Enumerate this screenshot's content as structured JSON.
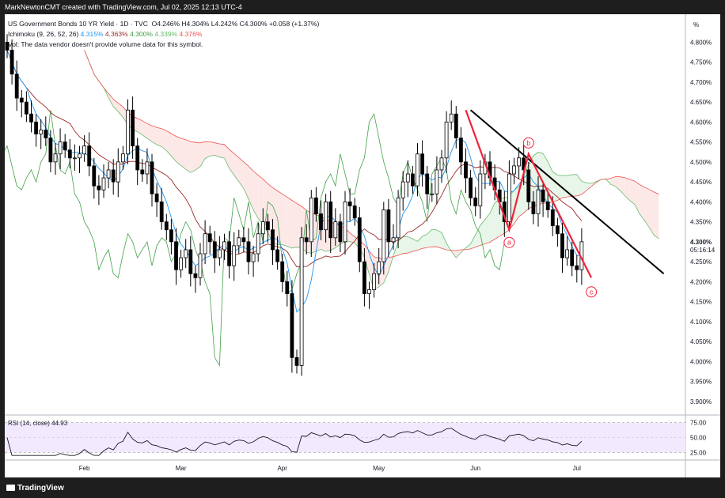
{
  "header": {
    "attribution": "MarkNewtonCMT created with TradingView.com, Jul 02, 2025 12:13 UTC-4"
  },
  "legend": {
    "symbol_line": "US Government Bonds 10 YR Yield · 1D · TVC",
    "ohlc": "O4.246% H4.304% L4.242% C4.300% +0.058 (+1.37%)",
    "ichimoku_label": "Ichimoku (9, 26, 52, 26)",
    "ichimoku_values": [
      "4.315%",
      "4.363%",
      "4.300%",
      "4.339%",
      "4.376%"
    ],
    "ichimoku_colors": [
      "#2196f3",
      "#9c2a2a",
      "#43a047",
      "#66bb6a",
      "#ef5350"
    ],
    "vol_line": "Vol: The data vendor doesn't provide volume data for this symbol."
  },
  "price_axis": {
    "unit": "%",
    "ticks": [
      "4.800%",
      "4.750%",
      "4.700%",
      "4.650%",
      "4.600%",
      "4.550%",
      "4.500%",
      "4.450%",
      "4.400%",
      "4.350%",
      "4.250%",
      "4.200%",
      "4.150%",
      "4.100%",
      "4.050%",
      "4.000%",
      "3.950%",
      "3.900%"
    ],
    "last_price": "4.300%",
    "countdown": "05:16:14"
  },
  "rsi_axis": {
    "ticks": [
      "75.00",
      "50.00",
      "25.00"
    ]
  },
  "time_axis": {
    "labels": [
      "Feb",
      "Mar",
      "Apr",
      "May",
      "Jun",
      "Jul"
    ]
  },
  "wave_labels": {
    "a": "a",
    "b": "b",
    "c": "c"
  },
  "rsi_legend": {
    "label": "RSI (14, close)",
    "value": "44.93"
  },
  "footer": {
    "brand": "TradingView"
  },
  "colors": {
    "candle": "#000000",
    "tenkan": "#2196f3",
    "kijun": "#9c2a2a",
    "chikou": "#43a047",
    "cloud_bull": "#e8f5e9",
    "cloud_bear": "#fde8e8",
    "wave_lines": "#ef233c",
    "trendline": "#000000",
    "rsi_band": "#f3e9ff"
  },
  "chart_data": {
    "type": "candlestick",
    "title": "US Government Bonds 10 YR Yield · 1D · TVC",
    "ylim": [
      3.87,
      4.87
    ],
    "rsi_ylim": [
      15,
      85
    ],
    "month_starts": {
      "Feb": 16,
      "Mar": 36,
      "Apr": 57,
      "May": 77,
      "Jun": 97,
      "Jul": 118
    },
    "closes": [
      4.78,
      4.72,
      4.66,
      4.65,
      4.62,
      4.6,
      4.57,
      4.58,
      4.56,
      4.5,
      4.52,
      4.55,
      4.53,
      4.51,
      4.51,
      4.52,
      4.54,
      4.49,
      4.44,
      4.43,
      4.46,
      4.48,
      4.45,
      4.5,
      4.52,
      4.63,
      4.54,
      4.48,
      4.47,
      4.5,
      4.42,
      4.4,
      4.35,
      4.33,
      4.3,
      4.23,
      4.26,
      4.28,
      4.22,
      4.21,
      4.27,
      4.32,
      4.3,
      4.26,
      4.28,
      4.3,
      4.24,
      4.29,
      4.31,
      4.3,
      4.25,
      4.27,
      4.32,
      4.35,
      4.33,
      4.28,
      4.25,
      4.2,
      4.17,
      4.01,
      3.99,
      4.31,
      4.3,
      4.41,
      4.37,
      4.33,
      4.4,
      4.31,
      4.35,
      4.3,
      4.4,
      4.39,
      4.36,
      4.25,
      4.17,
      4.18,
      4.22,
      4.25,
      4.38,
      4.3,
      4.31,
      4.41,
      4.45,
      4.47,
      4.44,
      4.52,
      4.47,
      4.42,
      4.42,
      4.48,
      4.51,
      4.6,
      4.62,
      4.56,
      4.5,
      4.46,
      4.41,
      4.39,
      4.47,
      4.5,
      4.46,
      4.43,
      4.4,
      4.35,
      4.47,
      4.49,
      4.51,
      4.48,
      4.4,
      4.37,
      4.43,
      4.4,
      4.38,
      4.34,
      4.32,
      4.26,
      4.28,
      4.24,
      4.23,
      4.3
    ],
    "tenkan_kijun": {
      "tenkan": "4.315%",
      "kijun": "4.363%"
    },
    "rsi": {
      "label": "RSI (14, close)",
      "last": 44.93,
      "upper": 75,
      "lower": 25
    },
    "elliott_wave_points": [
      {
        "label": "",
        "x": 95,
        "y": 4.63
      },
      {
        "label": "a",
        "x": 104,
        "y": 4.33
      },
      {
        "label": "b",
        "x": 108,
        "y": 4.52
      },
      {
        "label": "c",
        "x": 121,
        "y": 4.21
      }
    ],
    "trendline": [
      {
        "x": 96,
        "y": 4.63
      },
      {
        "x": 136,
        "y": 4.22
      }
    ]
  }
}
